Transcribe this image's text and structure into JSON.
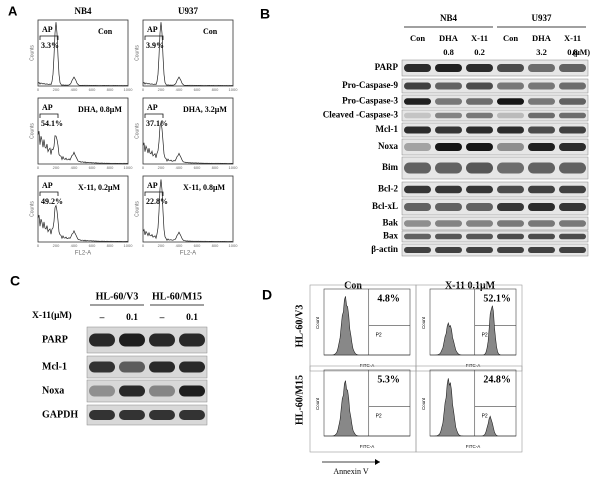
{
  "panel_a": {
    "label": "A",
    "columns": [
      "NB4",
      "U937"
    ],
    "y_axis_label": "Counts",
    "x_axis_label": "FL2-A",
    "x_ticks": [
      "0",
      "200",
      "400",
      "600",
      "800",
      "1000"
    ],
    "plots": [
      {
        "gate": "AP",
        "percent": "3.3%",
        "condition": "Con"
      },
      {
        "gate": "AP",
        "percent": "3.9%",
        "condition": "Con"
      },
      {
        "gate": "AP",
        "percent": "54.1%",
        "condition": "DHA, 0.8μM"
      },
      {
        "gate": "AP",
        "percent": "37.1%",
        "condition": "DHA, 3.2μM"
      },
      {
        "gate": "AP",
        "percent": "49.2%",
        "condition": "X-11, 0.2μM"
      },
      {
        "gate": "AP",
        "percent": "22.8%",
        "condition": "X-11, 0.8μM"
      }
    ]
  },
  "panel_b": {
    "label": "B",
    "cell_lines": [
      "NB4",
      "U937"
    ],
    "treatments": [
      "Con",
      "DHA",
      "X-11",
      "Con",
      "DHA",
      "X-11"
    ],
    "doses": [
      "0.8",
      "0.2",
      "3.2",
      "0.8"
    ],
    "dose_unit": "(μM)",
    "proteins": [
      "PARP",
      "Pro-Caspase-9",
      "Pro-Caspase-3",
      "Cleaved -Caspase-3",
      "Mcl-1",
      "Noxa",
      "Bim",
      "Bcl-2",
      "Bcl-xL",
      "Bak",
      "Bax",
      "β-actin"
    ]
  },
  "panel_c": {
    "label": "C",
    "cell_lines": [
      "HL-60/V3",
      "HL-60/M15"
    ],
    "treatment_label": "X-11(μM)",
    "treatments": [
      "–",
      "0.1",
      "–",
      "0.1"
    ],
    "proteins": [
      "PARP",
      "Mcl-1",
      "Noxa",
      "GAPDH"
    ]
  },
  "panel_d": {
    "label": "D",
    "columns": [
      "Con",
      "X-11 0.1μM"
    ],
    "rows": [
      "HL-60/V3",
      "HL-60/M15"
    ],
    "percents": [
      "4.8%",
      "52.1%",
      "5.3%",
      "24.8%"
    ],
    "gate": "P2",
    "x_axis_label": "FITC-A",
    "y_axis_label": "Count",
    "axis_title": "Annexin V"
  }
}
